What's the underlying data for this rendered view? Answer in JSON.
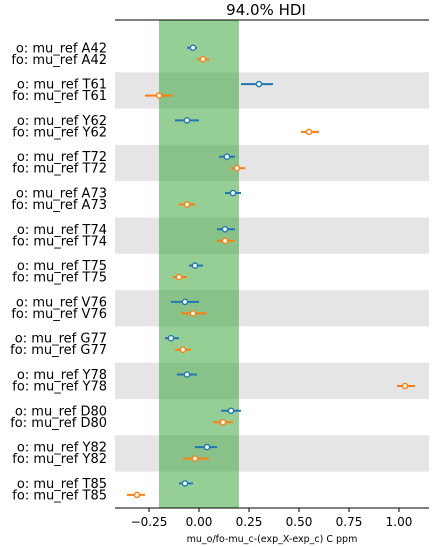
{
  "chart_data": {
    "type": "forest",
    "title": "94.0% HDI",
    "xlabel": "mu_o/fo-mu_c-(exp_X-exp_c) C ppm",
    "xlim": [
      -0.42,
      1.15
    ],
    "xticks": [
      -0.25,
      0.0,
      0.25,
      0.5,
      0.75,
      1.0
    ],
    "xtick_labels": [
      "−0.25",
      "0.00",
      "0.25",
      "0.50",
      "0.75",
      "1.00"
    ],
    "hdi_band": [
      -0.2,
      0.2
    ],
    "colors": {
      "o": "#1f77b4",
      "fo": "#ff7f0e",
      "band": "#2ca02c",
      "shade": "#e5e5e5"
    },
    "groups": [
      {
        "residue": "A42",
        "o": {
          "mean": -0.03,
          "lo": -0.06,
          "hi": -0.01
        },
        "fo": {
          "mean": 0.02,
          "lo": -0.01,
          "hi": 0.05
        }
      },
      {
        "residue": "T61",
        "o": {
          "mean": 0.3,
          "lo": 0.21,
          "hi": 0.37
        },
        "fo": {
          "mean": -0.2,
          "lo": -0.27,
          "hi": -0.13
        }
      },
      {
        "residue": "Y62",
        "o": {
          "mean": -0.06,
          "lo": -0.12,
          "hi": 0.0
        },
        "fo": {
          "mean": 0.55,
          "lo": 0.51,
          "hi": 0.6
        }
      },
      {
        "residue": "T72",
        "o": {
          "mean": 0.14,
          "lo": 0.1,
          "hi": 0.18
        },
        "fo": {
          "mean": 0.19,
          "lo": 0.16,
          "hi": 0.23
        }
      },
      {
        "residue": "A73",
        "o": {
          "mean": 0.17,
          "lo": 0.13,
          "hi": 0.21
        },
        "fo": {
          "mean": -0.06,
          "lo": -0.1,
          "hi": -0.02
        }
      },
      {
        "residue": "T74",
        "o": {
          "mean": 0.13,
          "lo": 0.09,
          "hi": 0.18
        },
        "fo": {
          "mean": 0.13,
          "lo": 0.09,
          "hi": 0.18
        }
      },
      {
        "residue": "T75",
        "o": {
          "mean": -0.02,
          "lo": -0.05,
          "hi": 0.02
        },
        "fo": {
          "mean": -0.1,
          "lo": -0.13,
          "hi": -0.06
        }
      },
      {
        "residue": "V76",
        "o": {
          "mean": -0.07,
          "lo": -0.14,
          "hi": 0.0
        },
        "fo": {
          "mean": -0.03,
          "lo": -0.09,
          "hi": 0.04
        }
      },
      {
        "residue": "G77",
        "o": {
          "mean": -0.14,
          "lo": -0.17,
          "hi": -0.1
        },
        "fo": {
          "mean": -0.08,
          "lo": -0.12,
          "hi": -0.04
        }
      },
      {
        "residue": "Y78",
        "o": {
          "mean": -0.06,
          "lo": -0.11,
          "hi": -0.01
        },
        "fo": {
          "mean": 1.03,
          "lo": 0.99,
          "hi": 1.08
        }
      },
      {
        "residue": "D80",
        "o": {
          "mean": 0.16,
          "lo": 0.11,
          "hi": 0.21
        },
        "fo": {
          "mean": 0.12,
          "lo": 0.07,
          "hi": 0.17
        }
      },
      {
        "residue": "Y82",
        "o": {
          "mean": 0.04,
          "lo": -0.02,
          "hi": 0.09
        },
        "fo": {
          "mean": -0.02,
          "lo": -0.08,
          "hi": 0.05
        }
      },
      {
        "residue": "T85",
        "o": {
          "mean": -0.07,
          "lo": -0.1,
          "hi": -0.03
        },
        "fo": {
          "mean": -0.31,
          "lo": -0.36,
          "hi": -0.27
        }
      }
    ],
    "label_templates": {
      "o": "o: mu_ref ",
      "fo": "fo: mu_ref "
    }
  }
}
